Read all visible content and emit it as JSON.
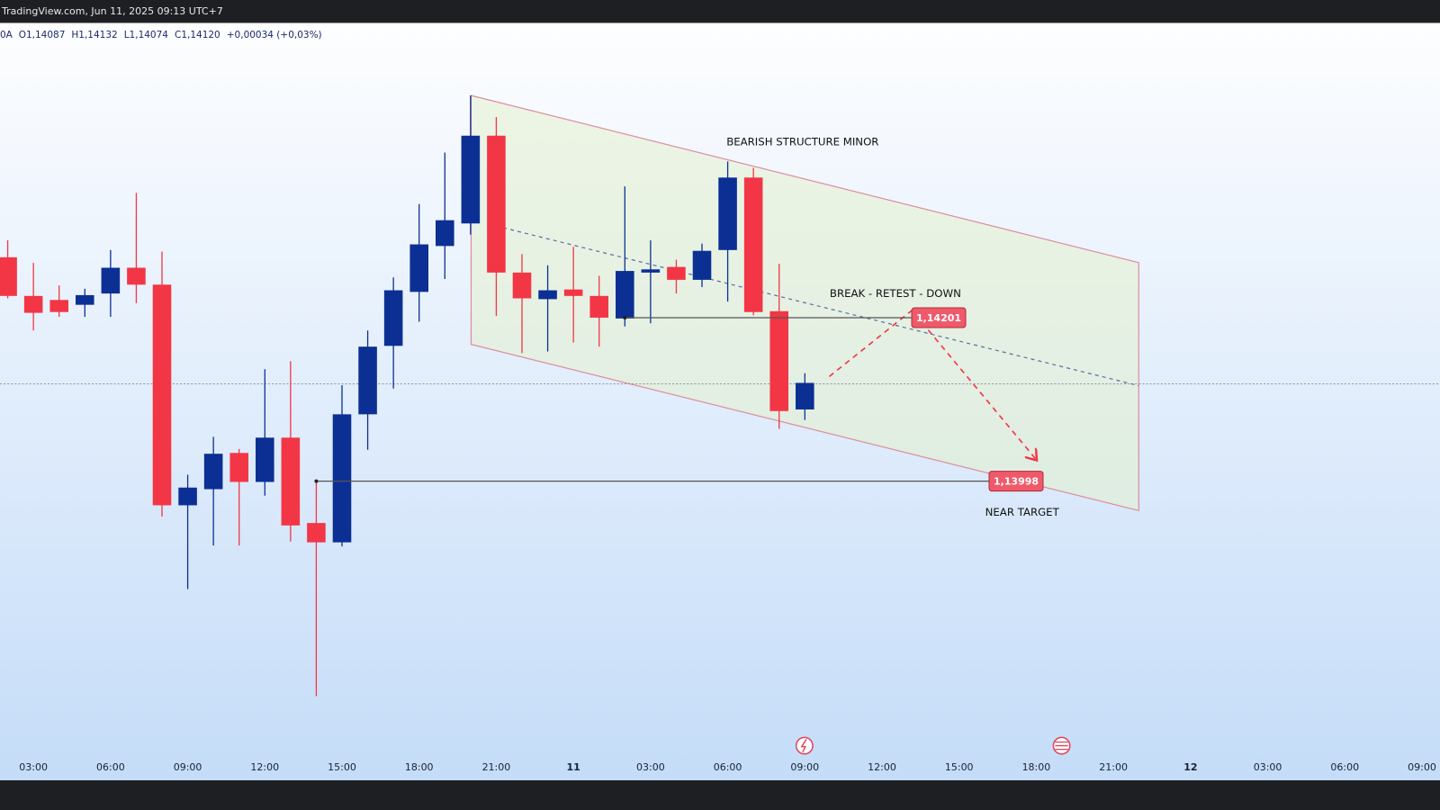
{
  "header": "TradingView.com, Jun 11, 2025 09:13 UTC+7",
  "ohlc_legend": [
    "0A",
    "O1,14087",
    "H1,14132",
    "L1,14074",
    "C1,14120",
    "+0,00034 (+0,03%)"
  ],
  "chart_data": {
    "type": "candlestick",
    "x": [
      2,
      3,
      4,
      5,
      6,
      7,
      8,
      9,
      10,
      11,
      12,
      13,
      14,
      15,
      16,
      17,
      18,
      19,
      20,
      21,
      22,
      23,
      24,
      25,
      26,
      27,
      28,
      29,
      30,
      31,
      32,
      33
    ],
    "open": [
      1.14276,
      1.14228,
      1.14223,
      1.14217,
      1.14231,
      1.14263,
      1.14242,
      1.13968,
      1.13988,
      1.14033,
      1.13997,
      1.14052,
      1.13946,
      1.13922,
      1.14081,
      1.14166,
      1.14233,
      1.1429,
      1.14318,
      1.14427,
      1.14257,
      1.14224,
      1.14236,
      1.14228,
      1.142,
      1.14257,
      1.14264,
      1.14248,
      1.14285,
      1.14375,
      1.14209,
      1.14087
    ],
    "high": [
      1.14297,
      1.14269,
      1.14241,
      1.14237,
      1.14285,
      1.14356,
      1.14283,
      1.14006,
      1.14053,
      1.14038,
      1.14137,
      1.14147,
      1.13999,
      1.14117,
      1.14185,
      1.14251,
      1.14342,
      1.14406,
      1.14477,
      1.1445,
      1.1428,
      1.14266,
      1.14289,
      1.14253,
      1.14364,
      1.14297,
      1.14273,
      1.14293,
      1.14395,
      1.14387,
      1.14268,
      1.14132
    ],
    "low": [
      1.14225,
      1.14185,
      1.14202,
      1.14202,
      1.14202,
      1.14219,
      1.13954,
      1.13864,
      1.13918,
      1.13918,
      1.1398,
      1.13923,
      1.13731,
      1.13917,
      1.14037,
      1.14113,
      1.14196,
      1.14249,
      1.14304,
      1.14203,
      1.14157,
      1.14159,
      1.1417,
      1.14165,
      1.1419,
      1.14194,
      1.14231,
      1.14239,
      1.14221,
      1.14204,
      1.14063,
      1.14074
    ],
    "close": [
      1.14228,
      1.14207,
      1.14208,
      1.14229,
      1.14263,
      1.14242,
      1.13968,
      1.1399,
      1.14032,
      1.13997,
      1.14052,
      1.13943,
      1.13922,
      1.14081,
      1.14165,
      1.14235,
      1.14292,
      1.14322,
      1.14427,
      1.14257,
      1.14225,
      1.14235,
      1.14228,
      1.14201,
      1.14259,
      1.14261,
      1.14248,
      1.14284,
      1.14375,
      1.14208,
      1.14085,
      1.1412
    ],
    "up_color": "#0c2f94",
    "down_color": "#f23645",
    "xlim": [
      1.7,
      57.7
    ],
    "ylim": [
      1.13658,
      1.14567
    ],
    "xticks": [
      {
        "value": 3,
        "label": "03:00"
      },
      {
        "value": 6,
        "label": "06:00"
      },
      {
        "value": 9,
        "label": "09:00"
      },
      {
        "value": 12,
        "label": "12:00"
      },
      {
        "value": 15,
        "label": "15:00"
      },
      {
        "value": 18,
        "label": "18:00"
      },
      {
        "value": 21,
        "label": "21:00"
      },
      {
        "value": 24,
        "label": "11"
      },
      {
        "value": 27,
        "label": "03:00"
      },
      {
        "value": 30,
        "label": "06:00"
      },
      {
        "value": 33,
        "label": "09:00"
      },
      {
        "value": 36,
        "label": "12:00"
      },
      {
        "value": 39,
        "label": "15:00"
      },
      {
        "value": 42,
        "label": "18:00"
      },
      {
        "value": 45,
        "label": "21:00"
      },
      {
        "value": 48,
        "label": "12"
      },
      {
        "value": 51,
        "label": "03:00"
      },
      {
        "value": 54,
        "label": "06:00"
      },
      {
        "value": 57,
        "label": "09:00"
      }
    ],
    "levels": [
      {
        "value": 1.14201,
        "label": "1,14201"
      },
      {
        "value": 1.13998,
        "label": "1,13998"
      }
    ],
    "annotations": [
      "BEARISH STRUCTURE MINOR",
      "BREAK - RETEST - DOWN",
      "NEAR TARGET"
    ]
  }
}
